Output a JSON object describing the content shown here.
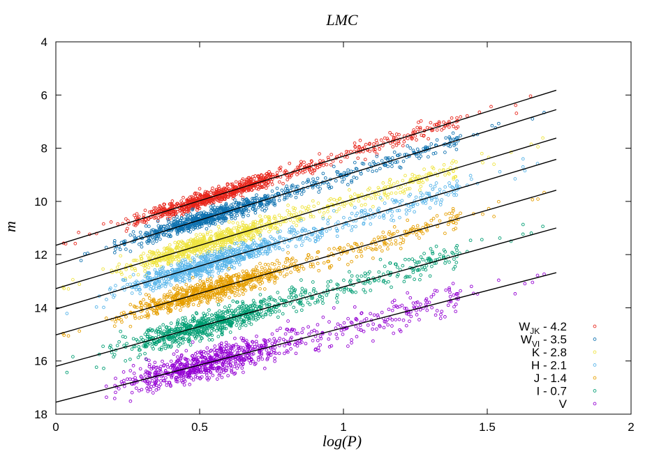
{
  "chart_data": {
    "type": "scatter",
    "title": "LMC",
    "xlabel": "log(P)",
    "ylabel": "m",
    "xlim": [
      0,
      2
    ],
    "ylim": [
      4,
      18
    ],
    "y_inverted": true,
    "xticks": [
      "0",
      "0.5",
      "1",
      "1.5",
      "2"
    ],
    "yticks": [
      "4",
      "6",
      "8",
      "10",
      "12",
      "14",
      "16",
      "18"
    ],
    "grid": false,
    "legend_position": "bottom-right",
    "series": [
      {
        "name": "W_JK - 4.2",
        "name_main": "W",
        "name_sub": "JK",
        "name_tail": " - 4.2",
        "color": "#e8251b",
        "fit": {
          "x0": 0,
          "y0": 11.65,
          "x1": 1.74,
          "y1": 5.82
        },
        "x_range": [
          0.02,
          1.73
        ],
        "scatter": 0.14,
        "n": 900
      },
      {
        "name": "W_VI - 3.5",
        "name_main": "W",
        "name_sub": "VI",
        "name_tail": " - 3.5",
        "color": "#0f72b0",
        "fit": {
          "x0": 0,
          "y0": 12.38,
          "x1": 1.74,
          "y1": 6.55
        },
        "x_range": [
          0.02,
          1.73
        ],
        "scatter": 0.15,
        "n": 900
      },
      {
        "name": "K - 2.8",
        "name_main": "K - 2.8",
        "color": "#efe440",
        "fit": {
          "x0": 0,
          "y0": 13.28,
          "x1": 1.74,
          "y1": 7.62
        },
        "x_range": [
          0.02,
          1.73
        ],
        "scatter": 0.18,
        "n": 900
      },
      {
        "name": "H - 2.1",
        "name_main": "H - 2.1",
        "color": "#56b4e9",
        "fit": {
          "x0": 0,
          "y0": 14.05,
          "x1": 1.74,
          "y1": 8.42
        },
        "x_range": [
          0.02,
          1.73
        ],
        "scatter": 0.19,
        "n": 900
      },
      {
        "name": "J - 1.4",
        "name_main": "J - 1.4",
        "color": "#e69f00",
        "fit": {
          "x0": 0,
          "y0": 15.02,
          "x1": 1.74,
          "y1": 9.58
        },
        "x_range": [
          0.02,
          1.73
        ],
        "scatter": 0.2,
        "n": 900
      },
      {
        "name": "I - 0.7",
        "name_main": "I - 0.7",
        "color": "#009e73",
        "fit": {
          "x0": 0,
          "y0": 16.2,
          "x1": 1.74,
          "y1": 11.0
        },
        "x_range": [
          0.02,
          1.73
        ],
        "scatter": 0.23,
        "n": 900
      },
      {
        "name": "V",
        "name_main": "V",
        "color": "#9400d3",
        "fit": {
          "x0": 0,
          "y0": 17.55,
          "x1": 1.74,
          "y1": 12.68
        },
        "x_range": [
          0.02,
          1.73
        ],
        "scatter": 0.28,
        "n": 900
      }
    ]
  }
}
